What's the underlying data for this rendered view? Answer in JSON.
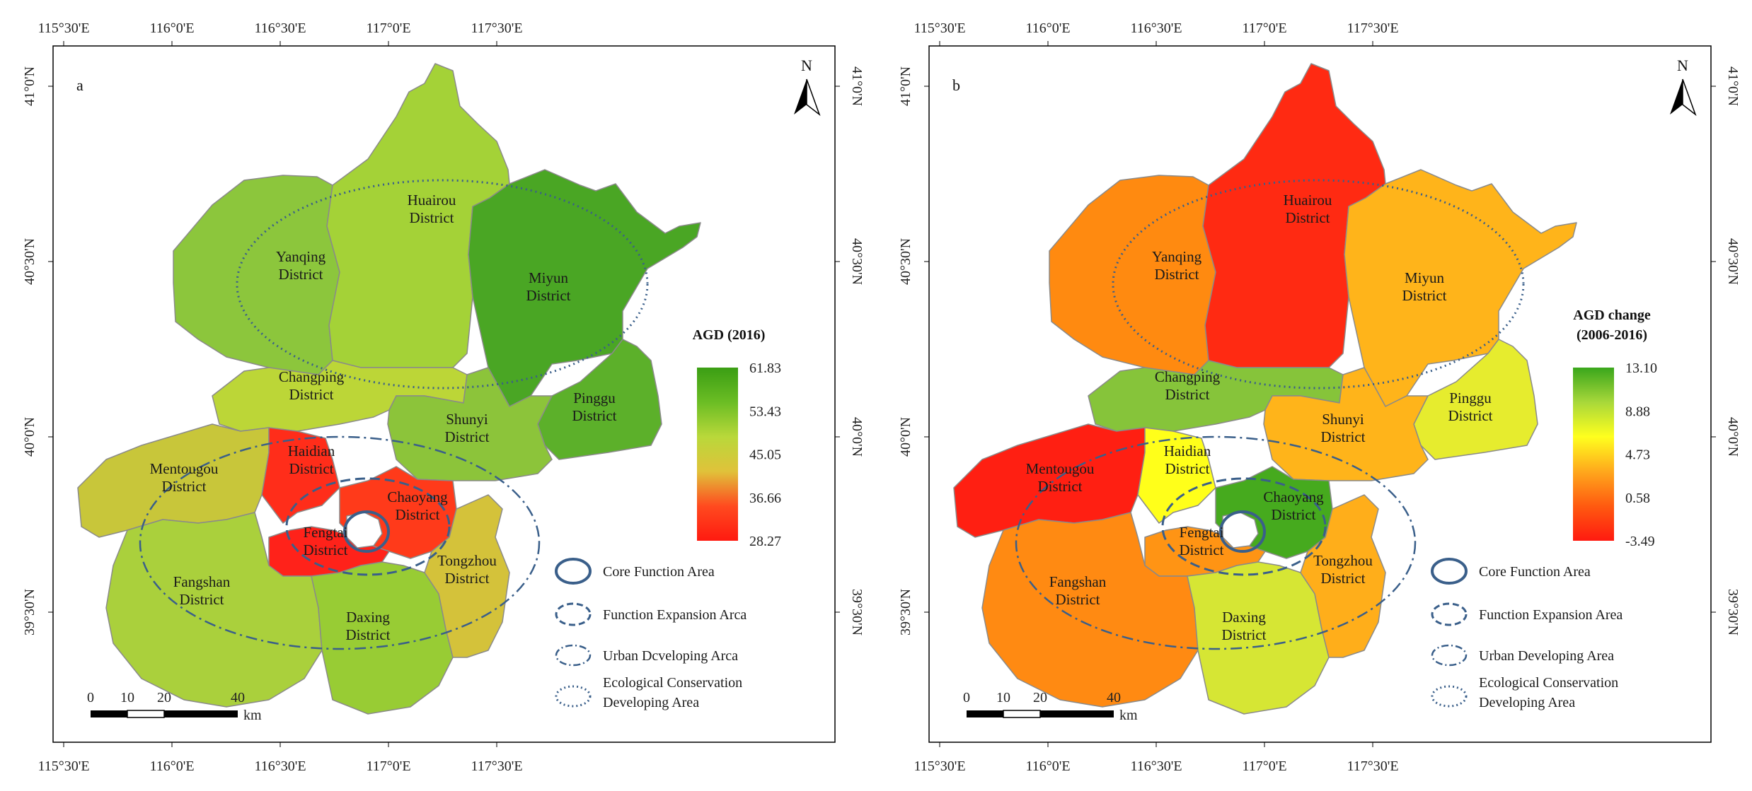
{
  "panels": [
    {
      "id": "a",
      "label": "a",
      "legend_title": [
        "AGD (2016)"
      ],
      "legend_values": [
        "61.83",
        "53.43",
        "45.05",
        "36.66",
        "28.27"
      ],
      "gradient": [
        "#3a9e14",
        "#6bbd24",
        "#b9d83a",
        "#e0c23a",
        "#ff4a1f",
        "#ff1a10"
      ],
      "district_colors": {
        "yanqing": "#8cc63c",
        "huairou": "#a4d237",
        "miyun": "#4aa624",
        "changping": "#bcd637",
        "pinggu": "#5cb02a",
        "shunyi": "#8cc43a",
        "mentougou": "#c8c63a",
        "haidian": "#ff2d1a",
        "chaoyang": "#ff3a1a",
        "fengtai": "#ff221a",
        "fangshan": "#aad03c",
        "daxing": "#98cc34",
        "tongzhou": "#d4c23a",
        "core": "#ffffff"
      }
    },
    {
      "id": "b",
      "label": "b",
      "legend_title": [
        "AGD change",
        "(2006-2016)"
      ],
      "legend_values": [
        "13.10",
        "8.88",
        "4.73",
        "0.58",
        "-3.49"
      ],
      "gradient": [
        "#3aa61c",
        "#a8d83a",
        "#ffff1e",
        "#ffa81c",
        "#ff5a10",
        "#ff1a10"
      ],
      "district_colors": {
        "yanqing": "#ff8a10",
        "huairou": "#ff2a12",
        "miyun": "#ffb41a",
        "changping": "#86c43a",
        "pinggu": "#e6ec2e",
        "shunyi": "#ffb41a",
        "mentougou": "#ff1f12",
        "haidian": "#ffff1a",
        "chaoyang": "#46aa1e",
        "fengtai": "#ff9414",
        "fangshan": "#ff8a12",
        "daxing": "#d6e634",
        "tongzhou": "#ffae1a",
        "core": "#ffffff"
      }
    }
  ],
  "district_names": {
    "yanqing": [
      "Yanqing",
      "District"
    ],
    "huairou": [
      "Huairou",
      "District"
    ],
    "miyun": [
      "Miyun",
      "District"
    ],
    "changping": [
      "Changping",
      "District"
    ],
    "pinggu": [
      "Pinggu",
      "District"
    ],
    "shunyi": [
      "Shunyi",
      "District"
    ],
    "mentougou": [
      "Mentougou",
      "District"
    ],
    "haidian": [
      "Haidian",
      "District"
    ],
    "chaoyang": [
      "Chaoyang",
      "District"
    ],
    "fengtai": [
      "Fengtai",
      "District"
    ],
    "fangshan": [
      "Fangshan",
      "District"
    ],
    "daxing": [
      "Daxing",
      "District"
    ],
    "tongzhou": [
      "Tongzhou",
      "District"
    ]
  },
  "lon_ticks": [
    "115°30'E",
    "116°0'E",
    "116°30'E",
    "117°0'E",
    "117°30'E"
  ],
  "lat_ticks": [
    "41°0'N",
    "40°30'N",
    "40°0'N",
    "39°30'N"
  ],
  "north_label": "N",
  "scale_numbers": [
    "0",
    "10",
    "20",
    "40"
  ],
  "scale_unit": "km",
  "area_legend": {
    "core": "Core Function Area",
    "expansion_a": "Function Expansion Arca",
    "expansion_b": "Function Expansion Area",
    "urban_a": "Urban Dcveloping Arca",
    "urban_b": "Urban Developing Area",
    "ecological": [
      "Ecological Conservation",
      "Developing Area"
    ]
  },
  "line_color": "#3a5f8a"
}
